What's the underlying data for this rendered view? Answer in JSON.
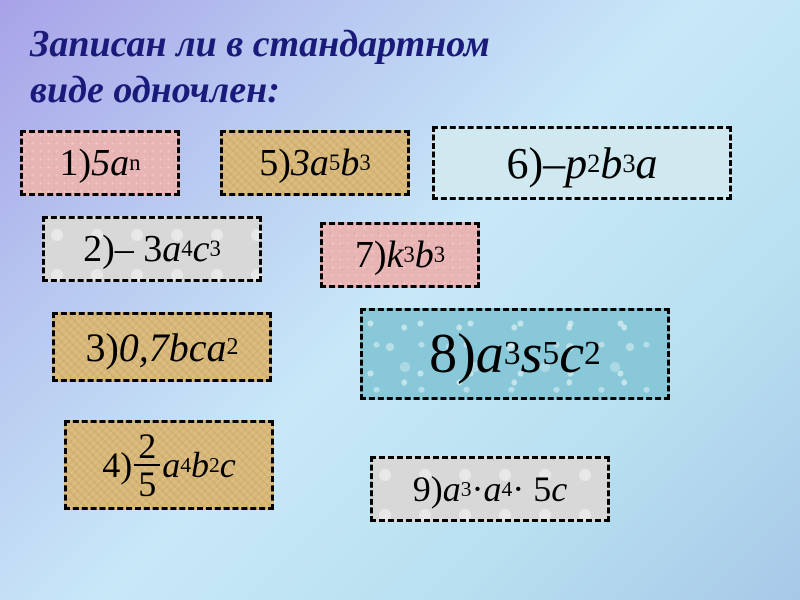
{
  "title": "Записан ли в стандартном\nвиде одночлен:",
  "cards": {
    "c1": {
      "num": "1)",
      "expr": "5a",
      "sup1": "n"
    },
    "c5": {
      "num": "5)",
      "expr": "3a",
      "sup1": "5",
      "var2": "b",
      "sup2": "3"
    },
    "c6": {
      "num": "6)",
      "prefix": " – ",
      "var1": "p",
      "sup1": "2",
      "var2": "b",
      "sup2": "3",
      "var3": "a"
    },
    "c2": {
      "num": "2)",
      "prefix": " – 3",
      "var1": "a",
      "sup1": "4",
      "var2": "c",
      "sup2": "3"
    },
    "c7": {
      "num": "7)",
      "var1": " k",
      "sup1": "3",
      "var2": "b",
      "sup2": "3"
    },
    "c3": {
      "num": "3)",
      "expr": " 0,7bca",
      "sup1": "2"
    },
    "c8": {
      "num": "8)",
      "var1": " a",
      "sup1": "3",
      "var2": " s",
      "sup2": "5",
      "var3": "c",
      "sup3": "2"
    },
    "c4": {
      "num": "4)",
      "frac_top": "2",
      "frac_bot": "5",
      "var1": "a",
      "sup1": "4",
      "var2": "b",
      "sup2": "2",
      "var3": "c"
    },
    "c9": {
      "num": "9)",
      "var1": " a",
      "sup1": "3",
      "dot1": " · ",
      "var2": "a",
      "sup2": "4",
      "dot2": " · 5",
      "var3": "c"
    }
  },
  "styles": {
    "title_color": "#1a1a7a",
    "border_style": "dashed",
    "textures": {
      "c1": "tx-pink",
      "c5": "tx-sand",
      "c6": "tx-ice",
      "c2": "tx-marble",
      "c7": "tx-pink",
      "c3": "tx-sand",
      "c8": "tx-water",
      "c4": "tx-sand",
      "c9": "tx-marble"
    }
  }
}
